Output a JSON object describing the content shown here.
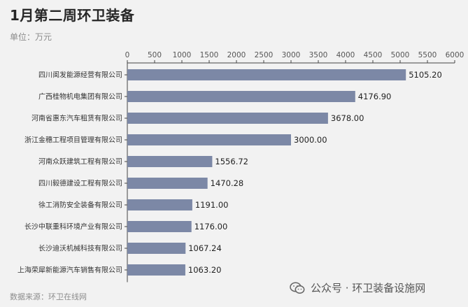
{
  "header": {
    "title": "1月第二周环卫装备",
    "unit_label": "单位：万元"
  },
  "footer": {
    "source": "数据来源：环卫在线网",
    "watermark": "公众号 · 环卫装备设施网",
    "watermark_icon": "wechat-icon"
  },
  "colors": {
    "bar": "#7c88a6",
    "axis": "#444444",
    "background": "#f2f2f2"
  },
  "chart_data": {
    "type": "bar",
    "orientation": "horizontal",
    "title": "1月第二周环卫装备",
    "xlabel": "",
    "ylabel": "",
    "xlim": [
      0,
      6000
    ],
    "x_ticks": [
      0,
      500,
      1000,
      1500,
      2000,
      2500,
      3000,
      3500,
      4000,
      4500,
      5000,
      5500,
      6000
    ],
    "x_axis_position": "top",
    "grid": false,
    "categories": [
      "四川阆发能源经营有限公司",
      "广西桂物机电集团有限公司",
      "河南省惠东汽车租赁有限公司",
      "浙江金穗工程项目管理有限公司",
      "河南众跃建筑工程有限公司",
      "四川毅德建设工程有限公司",
      "徐工消防安全装备有限公司",
      "长沙中联重科环境产业有限公司",
      "长沙迪沃机械科技有限公司",
      "上海荣犀新能源汽车销售有限公司"
    ],
    "values": [
      5105.2,
      4176.9,
      3678.0,
      3000.0,
      1556.72,
      1470.28,
      1191.0,
      1176.0,
      1067.24,
      1063.2
    ],
    "value_labels": [
      "5105.20",
      "4176.90",
      "3678.00",
      "3000.00",
      "1556.72",
      "1470.28",
      "1191.00",
      "1176.00",
      "1067.24",
      "1063.20"
    ]
  }
}
